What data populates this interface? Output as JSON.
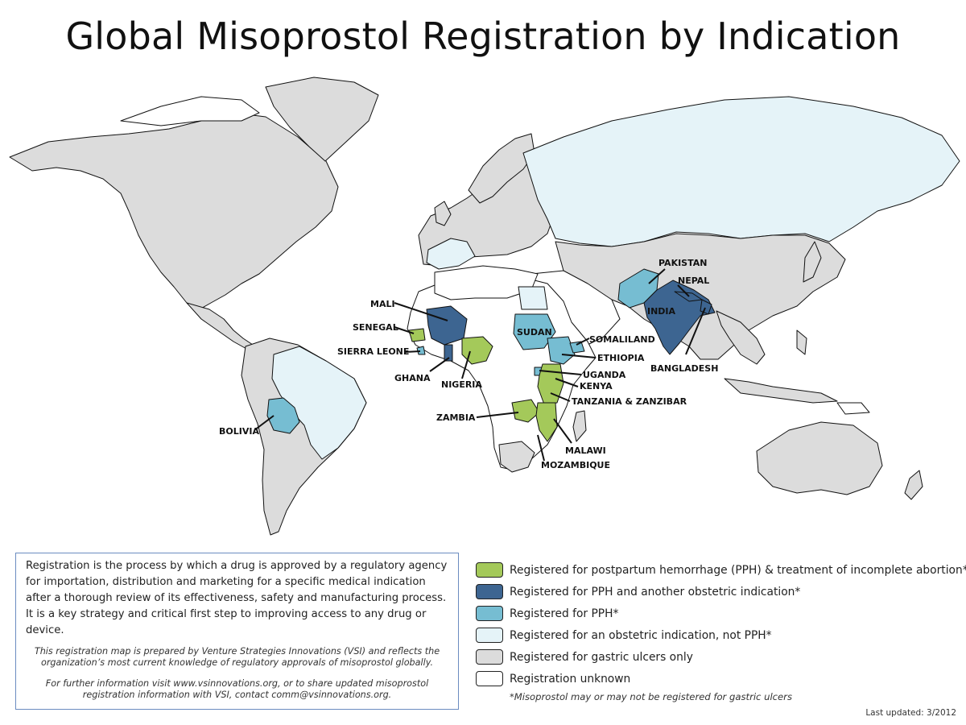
{
  "title": "Global Misoprostol Registration by Indication",
  "colors": {
    "pph_abortion": "#a4c95a",
    "pph_other": "#3d6591",
    "pph": "#76bdd2",
    "obstetric_not_pph": "#e5f3f8",
    "gastric": "#dcdcdc",
    "unknown": "#ffffff"
  },
  "country_labels": {
    "pakistan": "PAKISTAN",
    "nepal": "NEPAL",
    "india": "INDIA",
    "bangladesh": "BANGLADESH",
    "mali": "MALI",
    "senegal": "SENEGAL",
    "sierra_leone": "SIERRA LEONE",
    "ghana": "GHANA",
    "nigeria": "NIGERIA",
    "sudan": "SUDAN",
    "somaliland": "SOMALILAND",
    "ethiopia": "ETHIOPIA",
    "uganda": "UGANDA",
    "kenya": "KENYA",
    "tanzania": "TANZANIA & ZANZIBAR",
    "zambia": "ZAMBIA",
    "malawi": "MALAWI",
    "mozambique": "MOZAMBIQUE",
    "bolivia": "BOLIVIA"
  },
  "info_box": {
    "main": "Registration is the process by which a drug is approved by a regulatory agency for importation, distribution and marketing for a specific medical indication after a thorough review of its effectiveness, safety and manufacturing process. It is a key strategy and critical first step to improving access to any drug or device.",
    "note": "This registration map is prepared by Venture Strategies Innovations (VSI) and reflects the organization’s most current knowledge of regulatory approvals of misoprostol globally.",
    "contact": "For further information visit www.vsinnovations.org, or to share updated misoprostol registration information with VSI, contact comm@vsinnovations.org."
  },
  "legend": {
    "items": [
      {
        "label": "Registered for postpartum hemorrhage (PPH) & treatment of incomplete abortion*",
        "color": "#a4c95a"
      },
      {
        "label": "Registered for PPH and another obstetric indication*",
        "color": "#3d6591"
      },
      {
        "label": "Registered for PPH*",
        "color": "#76bdd2"
      },
      {
        "label": "Registered for an obstetric indication, not PPH*",
        "color": "#e5f3f8"
      },
      {
        "label": "Registered for gastric ulcers only",
        "color": "#dcdcdc"
      },
      {
        "label": "Registration unknown",
        "color": "#ffffff"
      }
    ],
    "footnote": "*Misoprostol may or may not be registered for gastric ulcers"
  },
  "last_updated": "Last updated: 3/2012"
}
